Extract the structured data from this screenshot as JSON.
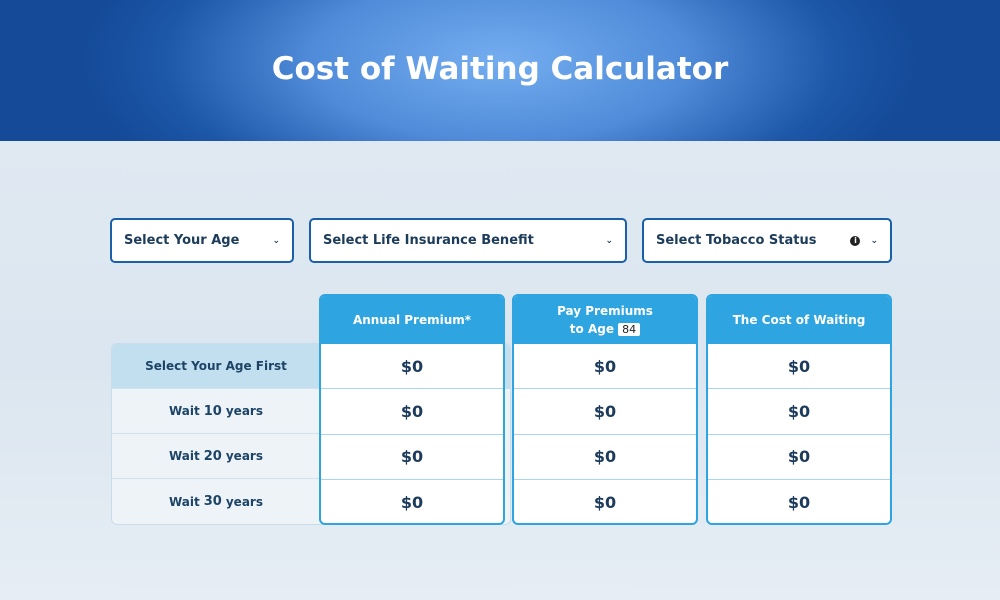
{
  "header": {
    "title": "Cost of Waiting Calculator"
  },
  "selects": [
    {
      "label": "Select Your Age"
    },
    {
      "label": "Select Life Insurance Benefit"
    },
    {
      "label": "Select Tobacco Status",
      "info_icon": "info-icon"
    }
  ],
  "table": {
    "row_labels": [
      {
        "text": "Select Your Age First"
      },
      {
        "pre": "Wait",
        "num": "10",
        "post": "years"
      },
      {
        "pre": "Wait",
        "num": "20",
        "post": "years"
      },
      {
        "pre": "Wait",
        "num": "30",
        "post": "years"
      }
    ],
    "columns": [
      {
        "header": "Annual Premium*",
        "values": [
          "$0",
          "$0",
          "$0",
          "$0"
        ]
      },
      {
        "header_line1": "Pay Premiums",
        "header_line2": "to Age",
        "age_badge": "84",
        "values": [
          "$0",
          "$0",
          "$0",
          "$0"
        ]
      },
      {
        "header": "The Cost of Waiting",
        "values": [
          "$0",
          "$0",
          "$0",
          "$0"
        ]
      }
    ]
  },
  "colors": {
    "header_blue": "#1d57a8",
    "column_blue": "#2ea4e0",
    "text_navy": "#1d3b5a"
  }
}
